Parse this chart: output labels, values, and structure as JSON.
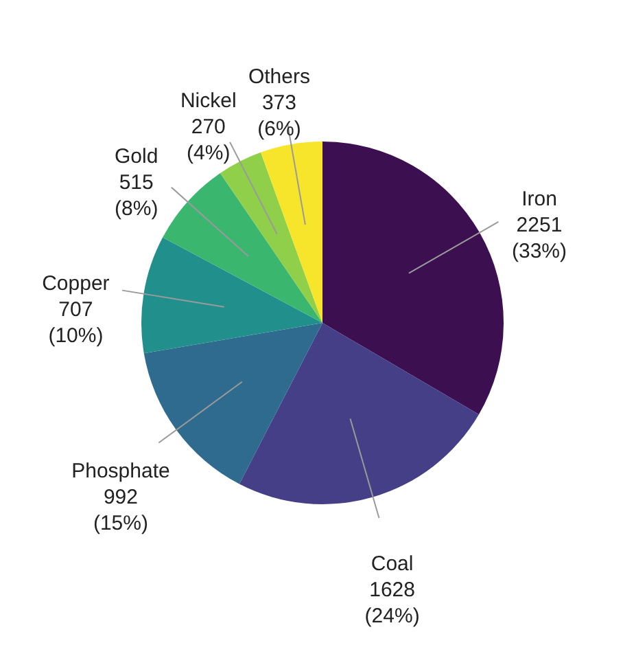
{
  "chart_data": {
    "type": "pie",
    "categories": [
      "Iron",
      "Coal",
      "Phosphate",
      "Copper",
      "Gold",
      "Nickel",
      "Others"
    ],
    "values": [
      2251,
      1628,
      992,
      707,
      515,
      270,
      373
    ],
    "value_labels": [
      "2251\n(33%)",
      "1628\n(24%)",
      "992\n(15%)",
      "707\n(10%)",
      "515\n(8%)",
      "270\n(4%)",
      "373\n(6%)"
    ],
    "colors": [
      "#3b0f50",
      "#443f86",
      "#2f6b8e",
      "#21908c",
      "#3ab66f",
      "#8fcf4a",
      "#f6e52a"
    ]
  }
}
